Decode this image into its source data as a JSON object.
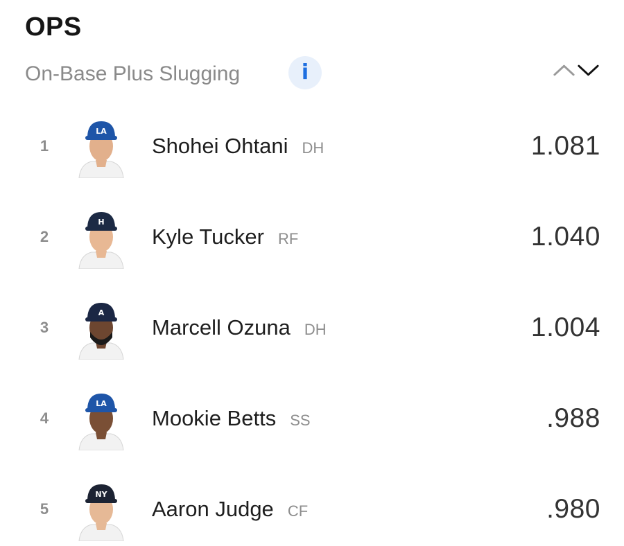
{
  "header": {
    "title": "OPS",
    "subtitle": "On-Base Plus Slugging",
    "info_glyph": "i"
  },
  "sort_toggle": {
    "icons": [
      "chevron-up-icon",
      "chevron-down-icon"
    ]
  },
  "colors": {
    "accent": "#1f6fe0",
    "dodgers": "#1e55a8",
    "astros": "#1c2a44",
    "braves": "#1b2744",
    "yankees": "#1c2333"
  },
  "players": [
    {
      "rank": "1",
      "name": "Shohei Ohtani",
      "position": "DH",
      "value": "1.081",
      "team_logo": "LA"
    },
    {
      "rank": "2",
      "name": "Kyle Tucker",
      "position": "RF",
      "value": "1.040",
      "team_logo": "H"
    },
    {
      "rank": "3",
      "name": "Marcell Ozuna",
      "position": "DH",
      "value": "1.004",
      "team_logo": "A"
    },
    {
      "rank": "4",
      "name": "Mookie Betts",
      "position": "SS",
      "value": ".988",
      "team_logo": "LA"
    },
    {
      "rank": "5",
      "name": "Aaron Judge",
      "position": "CF",
      "value": ".980",
      "team_logo": "NY"
    }
  ]
}
